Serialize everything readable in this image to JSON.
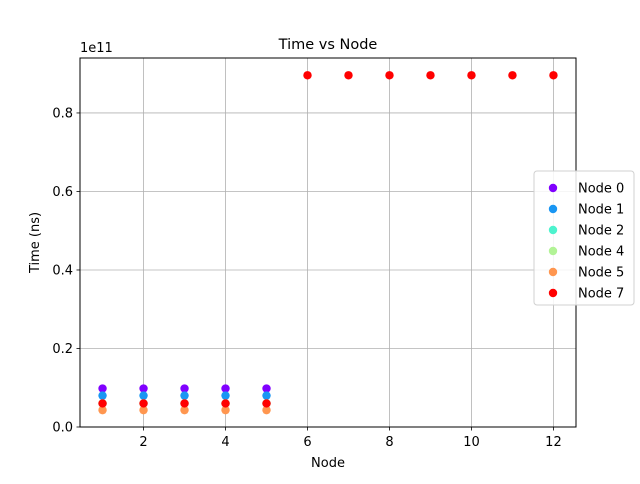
{
  "chart_data": {
    "type": "scatter",
    "title": "Time vs Node",
    "xlabel": "Node",
    "ylabel": "Time (ns)",
    "y_offset_label": "1e11",
    "y_multiplier": 100000000000,
    "xlim": [
      0.45,
      12.55
    ],
    "ylim": [
      0,
      0.94
    ],
    "x_ticks": [
      2,
      4,
      6,
      8,
      10,
      12
    ],
    "x_tick_labels": [
      "2",
      "4",
      "6",
      "8",
      "10",
      "12"
    ],
    "y_ticks": [
      0.0,
      0.2,
      0.4,
      0.6,
      0.8
    ],
    "y_tick_labels": [
      "0.0",
      "0.2",
      "0.4",
      "0.6",
      "0.8"
    ],
    "grid": true,
    "legend_placement": "center-right",
    "series": [
      {
        "name": "Node 0",
        "color": "#8000ff",
        "points": [
          [
            1,
            0.098
          ],
          [
            2,
            0.098
          ],
          [
            3,
            0.098
          ],
          [
            4,
            0.098
          ],
          [
            5,
            0.098
          ]
        ]
      },
      {
        "name": "Node 1",
        "color": "#1996f3",
        "points": [
          [
            1,
            0.08
          ],
          [
            2,
            0.08
          ],
          [
            3,
            0.08
          ],
          [
            4,
            0.08
          ],
          [
            5,
            0.08
          ]
        ]
      },
      {
        "name": "Node 2",
        "color": "#4df3ce",
        "points": [
          [
            1,
            0.06
          ],
          [
            2,
            0.06
          ],
          [
            3,
            0.06
          ],
          [
            4,
            0.06
          ],
          [
            5,
            0.06
          ]
        ]
      },
      {
        "name": "Node 4",
        "color": "#b2f396",
        "points": [
          [
            1,
            0.06
          ],
          [
            2,
            0.06
          ],
          [
            3,
            0.06
          ],
          [
            4,
            0.06
          ],
          [
            5,
            0.06
          ]
        ]
      },
      {
        "name": "Node 5",
        "color": "#ff964f",
        "points": [
          [
            1,
            0.043
          ],
          [
            2,
            0.043
          ],
          [
            3,
            0.043
          ],
          [
            4,
            0.043
          ],
          [
            5,
            0.043
          ]
        ]
      },
      {
        "name": "Node 7",
        "color": "#ff0000",
        "points": [
          [
            1,
            0.06
          ],
          [
            2,
            0.06
          ],
          [
            3,
            0.06
          ],
          [
            4,
            0.06
          ],
          [
            5,
            0.06
          ],
          [
            6,
            0.896
          ],
          [
            7,
            0.896
          ],
          [
            8,
            0.896
          ],
          [
            9,
            0.896
          ],
          [
            10,
            0.896
          ],
          [
            11,
            0.896
          ],
          [
            12,
            0.896
          ]
        ]
      }
    ]
  }
}
